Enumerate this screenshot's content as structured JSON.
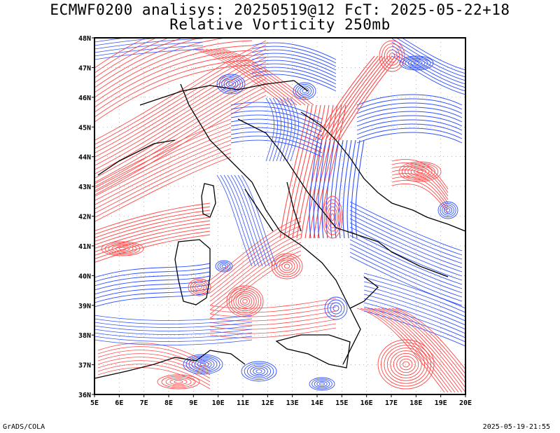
{
  "header": {
    "line1": "ECMWF0200 analisys: 20250519@12 FcT: 2025-05-22+18",
    "line2": "Relative Vorticity 250mb"
  },
  "map": {
    "lon_range": [
      5,
      20
    ],
    "lat_range": [
      36,
      48
    ],
    "lon_labels": [
      "5E",
      "6E",
      "7E",
      "8E",
      "9E",
      "10E",
      "11E",
      "12E",
      "13E",
      "14E",
      "15E",
      "16E",
      "17E",
      "18E",
      "19E",
      "20E"
    ],
    "lat_labels": [
      "36N",
      "37N",
      "38N",
      "39N",
      "40N",
      "41N",
      "42N",
      "43N",
      "44N",
      "45N",
      "46N",
      "47N",
      "48N"
    ],
    "grid": "dotted",
    "colors": {
      "positive": "#ff4a4a",
      "negative": "#3050ff",
      "positive_strong": "#ff6060",
      "negative_strong": "#2040ff",
      "coast": "#000000"
    }
  },
  "footer": {
    "left": "GrADS/COLA",
    "right": "2025-05-19-21:55"
  }
}
